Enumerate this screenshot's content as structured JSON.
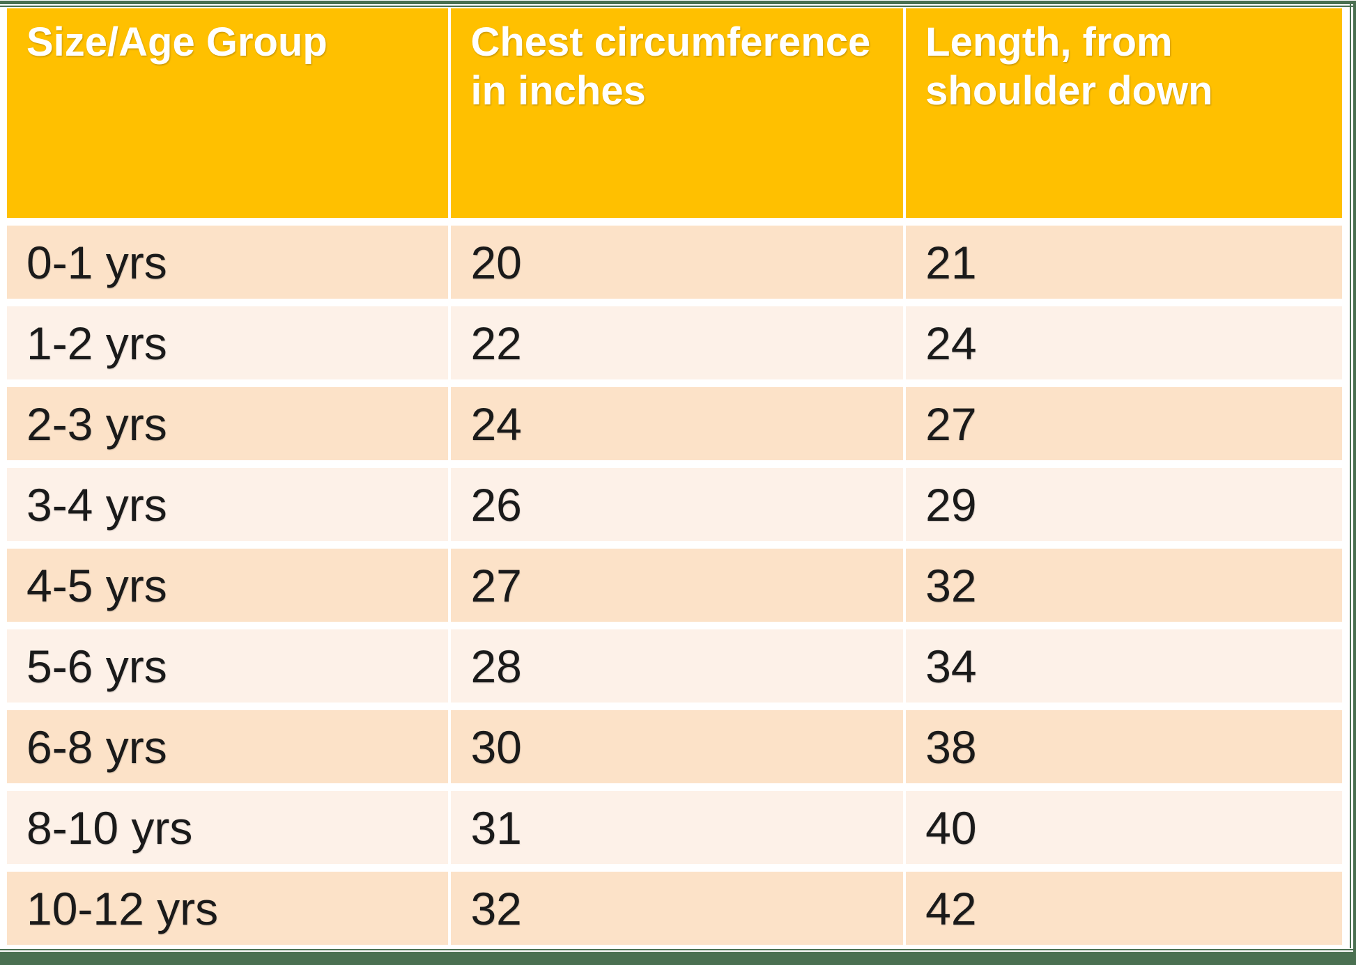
{
  "chart_data": {
    "type": "table",
    "columns": [
      "Size/Age Group",
      "Chest circumference in inches",
      "Length, from shoulder down"
    ],
    "rows": [
      [
        "0-1 yrs",
        "20",
        "21"
      ],
      [
        "1-2 yrs",
        "22",
        "24"
      ],
      [
        "2-3 yrs",
        "24",
        "27"
      ],
      [
        "3-4 yrs",
        "26",
        "29"
      ],
      [
        "4-5 yrs",
        "27",
        "32"
      ],
      [
        "5-6 yrs",
        "28",
        "34"
      ],
      [
        "6-8 yrs",
        "30",
        "38"
      ],
      [
        "8-10 yrs",
        "31",
        "40"
      ],
      [
        "10-12 yrs",
        "32",
        "42"
      ]
    ],
    "layout": {
      "header_position": "top",
      "banded_rows": true,
      "grid": "white-gutters"
    }
  },
  "colors": {
    "background": "#FFFFFF",
    "header_bg": "#FFC000",
    "header_text": "#FFFFFF",
    "band_dark": "#FCE2C8",
    "band_light": "#FDF1E8",
    "border_green": "#4A7051",
    "body_text": "#1A1A1A"
  }
}
